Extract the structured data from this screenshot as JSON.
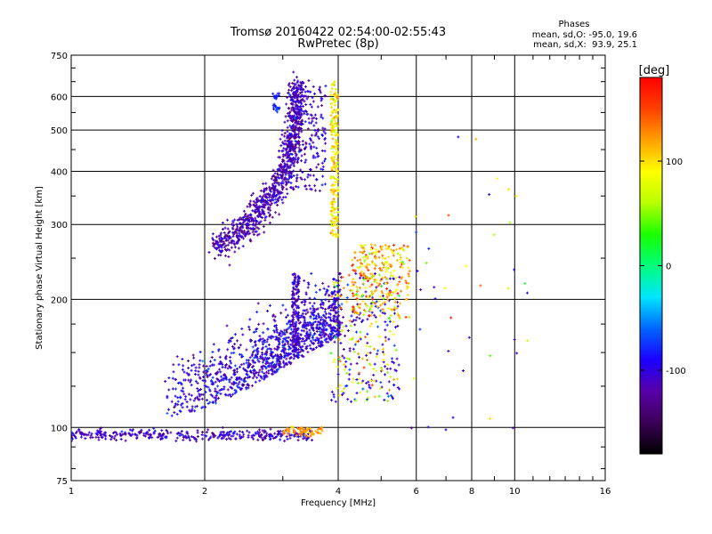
{
  "chart_data": {
    "type": "scatter",
    "title": "Tromsø 20160422 02:54:00-02:55:43",
    "subtitle": "RwPretec (8p)",
    "xlabel": "Frequency [MHz]",
    "ylabel": "Stationary phase Virtual Height [km]",
    "x_scale": "log",
    "y_scale": "log",
    "xlim": [
      1,
      16
    ],
    "ylim": [
      75,
      750
    ],
    "x_ticks": [
      1,
      2,
      4,
      6,
      8,
      10,
      16
    ],
    "y_ticks": [
      75,
      100,
      200,
      300,
      400,
      500,
      600,
      750
    ],
    "grid": true,
    "phase_info": {
      "heading": "Phases",
      "o_mode": "mean, sd,O: -95.0, 19.6",
      "x_mode": "mean, sd,X:  93.9, 25.1"
    },
    "colorbar": {
      "label": "[deg]",
      "range": [
        -180,
        180
      ],
      "ticks": [
        100,
        0,
        -100
      ],
      "colors": [
        "#000000",
        "#3b0057",
        "#5a00a8",
        "#1b00ff",
        "#0066ff",
        "#00e5ff",
        "#00ff7a",
        "#19ff00",
        "#b8ff00",
        "#ffff00",
        "#ffa000",
        "#ff4000",
        "#ff0000"
      ]
    },
    "traces": [
      {
        "name": "E-layer trace",
        "x_range": [
          1.0,
          3.5
        ],
        "h": 96,
        "phase_mean": -110
      },
      {
        "name": "Es trace",
        "x_range": [
          3.0,
          3.7
        ],
        "h": 98,
        "phase_mean": 120
      },
      {
        "name": "F1-layer spread",
        "x_range": [
          1.6,
          5.5
        ],
        "h_range": [
          110,
          230
        ],
        "phase_mean": -90
      },
      {
        "name": "F2 O-mode trace",
        "points": [
          [
            2.1,
            265
          ],
          [
            2.5,
            300
          ],
          [
            2.85,
            350
          ],
          [
            3.1,
            420
          ],
          [
            3.2,
            520
          ],
          [
            3.25,
            640
          ]
        ],
        "phase_mean": -95
      },
      {
        "name": "F2 X-mode trace",
        "x_range": [
          3.85,
          4.0
        ],
        "h_range": [
          280,
          650
        ],
        "phase_mean": 94
      },
      {
        "name": "F-region X-mode cluster",
        "x_range": [
          4.3,
          5.8
        ],
        "h_range": [
          180,
          270
        ],
        "phase_mean": 110
      }
    ]
  }
}
